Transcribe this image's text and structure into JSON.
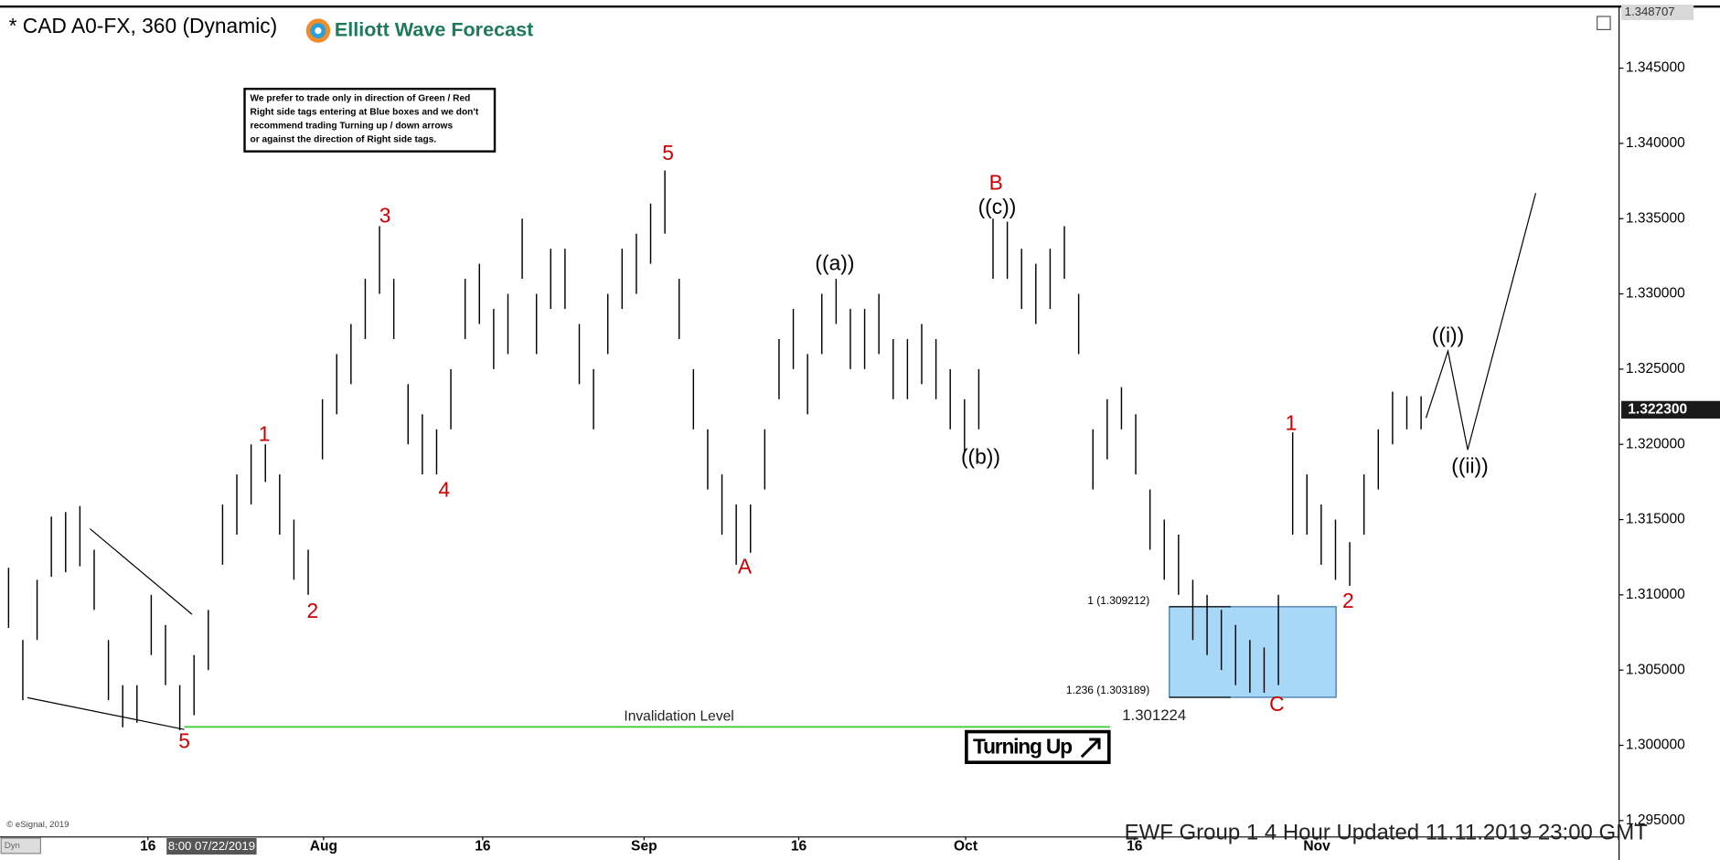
{
  "chart_data": {
    "type": "ohlc",
    "title": "* CAD A0-FX, 360 (Dynamic)",
    "brand": "Elliott Wave Forecast",
    "notice": [
      "We prefer to trade only in direction of Green / Red",
      "Right side tags entering at Blue boxes and we don't",
      "recommend trading Turning up / down arrows",
      "or against the direction of Right side tags."
    ],
    "color": "#000000",
    "highs": [
      1.3118,
      1.307,
      1.311,
      1.3152,
      1.3155,
      1.3159,
      1.313,
      1.307,
      1.304,
      1.304,
      1.31,
      1.308,
      1.304,
      1.306,
      1.309,
      1.316,
      1.318,
      1.32,
      1.32,
      1.318,
      1.315,
      1.313,
      1.323,
      1.326,
      1.328,
      1.331,
      1.3345,
      1.331,
      1.324,
      1.322,
      1.321,
      1.325,
      1.331,
      1.332,
      1.329,
      1.33,
      1.335,
      1.33,
      1.333,
      1.333,
      1.328,
      1.325,
      1.33,
      1.333,
      1.334,
      1.336,
      1.3382,
      1.331,
      1.325,
      1.321,
      1.318,
      1.316,
      1.316,
      1.321,
      1.327,
      1.329,
      1.326,
      1.33,
      1.331,
      1.329,
      1.329,
      1.33,
      1.327,
      1.327,
      1.328,
      1.327,
      1.325,
      1.323,
      1.325,
      1.335,
      1.3348,
      1.333,
      1.332,
      1.333,
      1.3345,
      1.33,
      1.321,
      1.323,
      1.3238,
      1.322,
      1.317,
      1.315,
      1.314,
      1.311,
      1.31,
      1.309,
      1.308,
      1.307,
      1.3065,
      1.31,
      1.3208,
      1.318,
      1.316,
      1.315,
      1.3135,
      1.318,
      1.321,
      1.3235,
      1.3232,
      1.3232
    ],
    "lows": [
      1.3078,
      1.303,
      1.307,
      1.3112,
      1.3115,
      1.3119,
      1.309,
      1.303,
      1.3012,
      1.3015,
      1.306,
      1.304,
      1.301,
      1.302,
      1.305,
      1.312,
      1.314,
      1.316,
      1.3175,
      1.314,
      1.311,
      1.31,
      1.319,
      1.322,
      1.324,
      1.327,
      1.33,
      1.327,
      1.32,
      1.318,
      1.318,
      1.321,
      1.327,
      1.328,
      1.325,
      1.326,
      1.331,
      1.326,
      1.329,
      1.329,
      1.324,
      1.321,
      1.326,
      1.329,
      1.33,
      1.332,
      1.334,
      1.327,
      1.321,
      1.317,
      1.314,
      1.312,
      1.3128,
      1.317,
      1.323,
      1.325,
      1.322,
      1.326,
      1.328,
      1.325,
      1.325,
      1.326,
      1.323,
      1.323,
      1.324,
      1.323,
      1.321,
      1.3195,
      1.321,
      1.331,
      1.331,
      1.329,
      1.328,
      1.329,
      1.331,
      1.326,
      1.317,
      1.319,
      1.321,
      1.318,
      1.313,
      1.311,
      1.31,
      1.307,
      1.306,
      1.305,
      1.304,
      1.3035,
      1.3035,
      1.304,
      1.314,
      1.314,
      1.312,
      1.311,
      1.3106,
      1.314,
      1.317,
      1.32,
      1.321,
      1.321
    ],
    "xlim": [
      -0.6,
      112.8
    ],
    "xticks": [
      {
        "value": 9.77,
        "label": "16"
      },
      {
        "value": 22.08,
        "label": "Aug"
      },
      {
        "value": 33.23,
        "label": "16"
      },
      {
        "value": 44.54,
        "label": "Sep"
      },
      {
        "value": 55.38,
        "label": "16"
      },
      {
        "value": 67.08,
        "label": "Oct"
      },
      {
        "value": 78.92,
        "label": "16"
      },
      {
        "value": 91.69,
        "label": "Nov"
      }
    ],
    "cursor_label": {
      "value": 14.23,
      "label": "8:00 07/22/2019"
    },
    "ylim": [
      1.2934,
      1.3488
    ],
    "yticks": [
      {
        "value": 1.295,
        "label": "1.295000"
      },
      {
        "value": 1.3,
        "label": "1.300000"
      },
      {
        "value": 1.305,
        "label": "1.305000"
      },
      {
        "value": 1.31,
        "label": "1.310000"
      },
      {
        "value": 1.315,
        "label": "1.315000"
      },
      {
        "value": 1.32,
        "label": "1.320000"
      },
      {
        "value": 1.325,
        "label": "1.325000"
      },
      {
        "value": 1.33,
        "label": "1.330000"
      },
      {
        "value": 1.335,
        "label": "1.335000"
      },
      {
        "value": 1.34,
        "label": "1.340000"
      },
      {
        "value": 1.345,
        "label": "1.345000"
      }
    ],
    "top_price": {
      "value": 1.348707,
      "label": "1.348707"
    },
    "last_price": {
      "value": 1.3223,
      "label": "1.322300"
    },
    "invalidation": {
      "label": "Invalidation Level",
      "value": 1.301224,
      "color": "#33cc33"
    },
    "fib_box": {
      "top": 1.309212,
      "bottom": 1.303189,
      "top_label": "1 (1.309212)",
      "bottom_label": "1.236 (1.303189)",
      "color": "#a8d8f8"
    },
    "wave_labels": [
      {
        "text": "5",
        "color": "#cc0000"
      },
      {
        "text": "1",
        "color": "#cc0000"
      },
      {
        "text": "2",
        "color": "#cc0000"
      },
      {
        "text": "3",
        "color": "#cc0000"
      },
      {
        "text": "4",
        "color": "#cc0000"
      },
      {
        "text": "5",
        "color": "#cc0000"
      },
      {
        "text": "A",
        "color": "#cc0000"
      },
      {
        "text": "B",
        "color": "#cc0000"
      },
      {
        "text": "C",
        "color": "#cc0000"
      },
      {
        "text": "1",
        "color": "#cc0000"
      },
      {
        "text": "2",
        "color": "#cc0000"
      },
      {
        "text": "((a))",
        "color": "#000000"
      },
      {
        "text": "((b))",
        "color": "#000000"
      },
      {
        "text": "((c))",
        "color": "#000000"
      },
      {
        "text": "((i))",
        "color": "#000000"
      },
      {
        "text": "((ii))",
        "color": "#000000"
      }
    ],
    "signal": "Turning Up",
    "source": "© eSignal, 2019",
    "corner": "Dyn",
    "footer": "EWF Group 1 4 Hour  Updated 11.11.2019 23:00 GMT"
  }
}
